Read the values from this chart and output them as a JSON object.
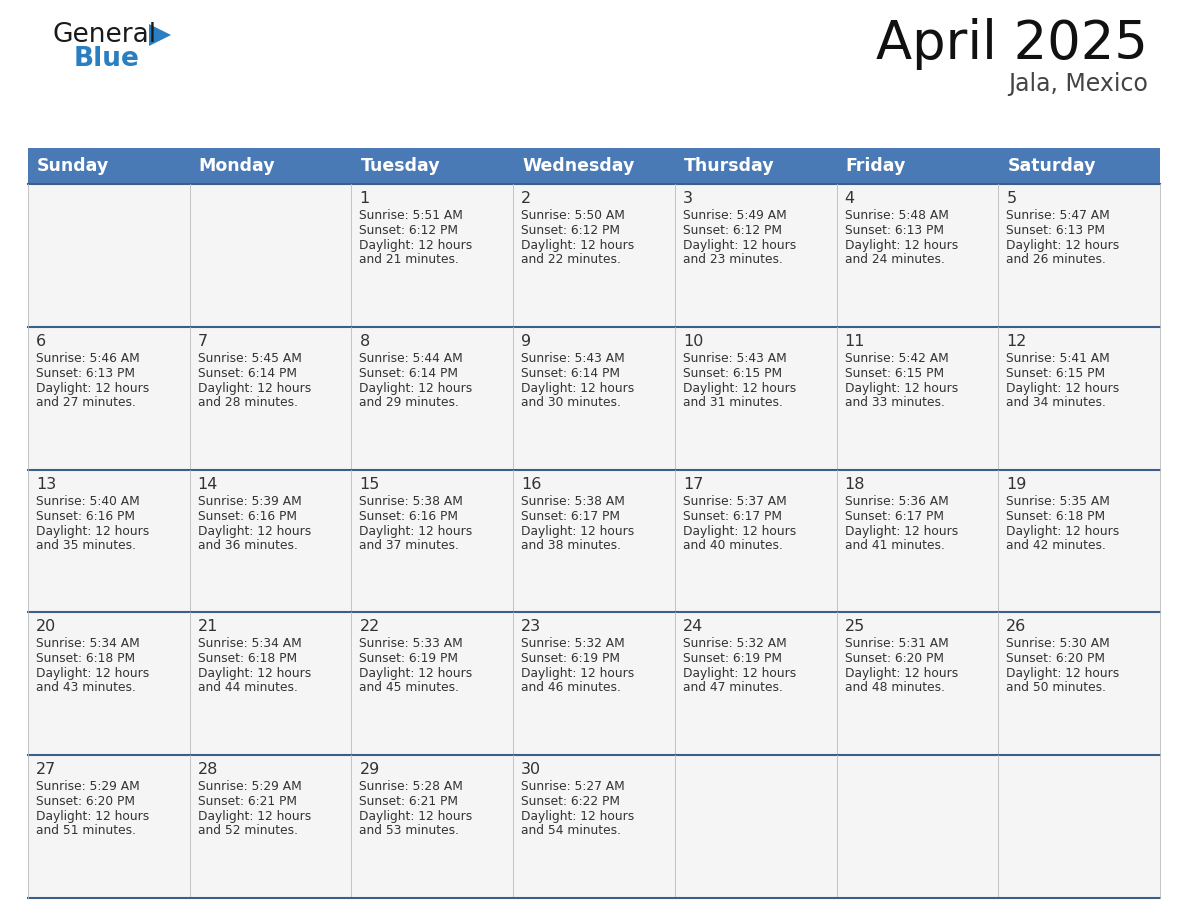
{
  "title": "April 2025",
  "subtitle": "Jala, Mexico",
  "header_color": "#4a7ab5",
  "header_text_color": "#ffffff",
  "cell_bg_color": "#f5f5f5",
  "row_border_color": "#3a5f8a",
  "col_border_color": "#cccccc",
  "text_color": "#333333",
  "days_of_week": [
    "Sunday",
    "Monday",
    "Tuesday",
    "Wednesday",
    "Thursday",
    "Friday",
    "Saturday"
  ],
  "weeks": [
    [
      {
        "day": "",
        "sunrise": "",
        "sunset": "",
        "daylight": ""
      },
      {
        "day": "",
        "sunrise": "",
        "sunset": "",
        "daylight": ""
      },
      {
        "day": "1",
        "sunrise": "Sunrise: 5:51 AM",
        "sunset": "Sunset: 6:12 PM",
        "daylight": "Daylight: 12 hours\nand 21 minutes."
      },
      {
        "day": "2",
        "sunrise": "Sunrise: 5:50 AM",
        "sunset": "Sunset: 6:12 PM",
        "daylight": "Daylight: 12 hours\nand 22 minutes."
      },
      {
        "day": "3",
        "sunrise": "Sunrise: 5:49 AM",
        "sunset": "Sunset: 6:12 PM",
        "daylight": "Daylight: 12 hours\nand 23 minutes."
      },
      {
        "day": "4",
        "sunrise": "Sunrise: 5:48 AM",
        "sunset": "Sunset: 6:13 PM",
        "daylight": "Daylight: 12 hours\nand 24 minutes."
      },
      {
        "day": "5",
        "sunrise": "Sunrise: 5:47 AM",
        "sunset": "Sunset: 6:13 PM",
        "daylight": "Daylight: 12 hours\nand 26 minutes."
      }
    ],
    [
      {
        "day": "6",
        "sunrise": "Sunrise: 5:46 AM",
        "sunset": "Sunset: 6:13 PM",
        "daylight": "Daylight: 12 hours\nand 27 minutes."
      },
      {
        "day": "7",
        "sunrise": "Sunrise: 5:45 AM",
        "sunset": "Sunset: 6:14 PM",
        "daylight": "Daylight: 12 hours\nand 28 minutes."
      },
      {
        "day": "8",
        "sunrise": "Sunrise: 5:44 AM",
        "sunset": "Sunset: 6:14 PM",
        "daylight": "Daylight: 12 hours\nand 29 minutes."
      },
      {
        "day": "9",
        "sunrise": "Sunrise: 5:43 AM",
        "sunset": "Sunset: 6:14 PM",
        "daylight": "Daylight: 12 hours\nand 30 minutes."
      },
      {
        "day": "10",
        "sunrise": "Sunrise: 5:43 AM",
        "sunset": "Sunset: 6:15 PM",
        "daylight": "Daylight: 12 hours\nand 31 minutes."
      },
      {
        "day": "11",
        "sunrise": "Sunrise: 5:42 AM",
        "sunset": "Sunset: 6:15 PM",
        "daylight": "Daylight: 12 hours\nand 33 minutes."
      },
      {
        "day": "12",
        "sunrise": "Sunrise: 5:41 AM",
        "sunset": "Sunset: 6:15 PM",
        "daylight": "Daylight: 12 hours\nand 34 minutes."
      }
    ],
    [
      {
        "day": "13",
        "sunrise": "Sunrise: 5:40 AM",
        "sunset": "Sunset: 6:16 PM",
        "daylight": "Daylight: 12 hours\nand 35 minutes."
      },
      {
        "day": "14",
        "sunrise": "Sunrise: 5:39 AM",
        "sunset": "Sunset: 6:16 PM",
        "daylight": "Daylight: 12 hours\nand 36 minutes."
      },
      {
        "day": "15",
        "sunrise": "Sunrise: 5:38 AM",
        "sunset": "Sunset: 6:16 PM",
        "daylight": "Daylight: 12 hours\nand 37 minutes."
      },
      {
        "day": "16",
        "sunrise": "Sunrise: 5:38 AM",
        "sunset": "Sunset: 6:17 PM",
        "daylight": "Daylight: 12 hours\nand 38 minutes."
      },
      {
        "day": "17",
        "sunrise": "Sunrise: 5:37 AM",
        "sunset": "Sunset: 6:17 PM",
        "daylight": "Daylight: 12 hours\nand 40 minutes."
      },
      {
        "day": "18",
        "sunrise": "Sunrise: 5:36 AM",
        "sunset": "Sunset: 6:17 PM",
        "daylight": "Daylight: 12 hours\nand 41 minutes."
      },
      {
        "day": "19",
        "sunrise": "Sunrise: 5:35 AM",
        "sunset": "Sunset: 6:18 PM",
        "daylight": "Daylight: 12 hours\nand 42 minutes."
      }
    ],
    [
      {
        "day": "20",
        "sunrise": "Sunrise: 5:34 AM",
        "sunset": "Sunset: 6:18 PM",
        "daylight": "Daylight: 12 hours\nand 43 minutes."
      },
      {
        "day": "21",
        "sunrise": "Sunrise: 5:34 AM",
        "sunset": "Sunset: 6:18 PM",
        "daylight": "Daylight: 12 hours\nand 44 minutes."
      },
      {
        "day": "22",
        "sunrise": "Sunrise: 5:33 AM",
        "sunset": "Sunset: 6:19 PM",
        "daylight": "Daylight: 12 hours\nand 45 minutes."
      },
      {
        "day": "23",
        "sunrise": "Sunrise: 5:32 AM",
        "sunset": "Sunset: 6:19 PM",
        "daylight": "Daylight: 12 hours\nand 46 minutes."
      },
      {
        "day": "24",
        "sunrise": "Sunrise: 5:32 AM",
        "sunset": "Sunset: 6:19 PM",
        "daylight": "Daylight: 12 hours\nand 47 minutes."
      },
      {
        "day": "25",
        "sunrise": "Sunrise: 5:31 AM",
        "sunset": "Sunset: 6:20 PM",
        "daylight": "Daylight: 12 hours\nand 48 minutes."
      },
      {
        "day": "26",
        "sunrise": "Sunrise: 5:30 AM",
        "sunset": "Sunset: 6:20 PM",
        "daylight": "Daylight: 12 hours\nand 50 minutes."
      }
    ],
    [
      {
        "day": "27",
        "sunrise": "Sunrise: 5:29 AM",
        "sunset": "Sunset: 6:20 PM",
        "daylight": "Daylight: 12 hours\nand 51 minutes."
      },
      {
        "day": "28",
        "sunrise": "Sunrise: 5:29 AM",
        "sunset": "Sunset: 6:21 PM",
        "daylight": "Daylight: 12 hours\nand 52 minutes."
      },
      {
        "day": "29",
        "sunrise": "Sunrise: 5:28 AM",
        "sunset": "Sunset: 6:21 PM",
        "daylight": "Daylight: 12 hours\nand 53 minutes."
      },
      {
        "day": "30",
        "sunrise": "Sunrise: 5:27 AM",
        "sunset": "Sunset: 6:22 PM",
        "daylight": "Daylight: 12 hours\nand 54 minutes."
      },
      {
        "day": "",
        "sunrise": "",
        "sunset": "",
        "daylight": ""
      },
      {
        "day": "",
        "sunrise": "",
        "sunset": "",
        "daylight": ""
      },
      {
        "day": "",
        "sunrise": "",
        "sunset": "",
        "daylight": ""
      }
    ]
  ],
  "logo_text1": "General",
  "logo_text2": "Blue",
  "logo_color1": "#1a1a1a",
  "logo_color2": "#2a7fc1",
  "logo_triangle_color": "#2a7fc1"
}
